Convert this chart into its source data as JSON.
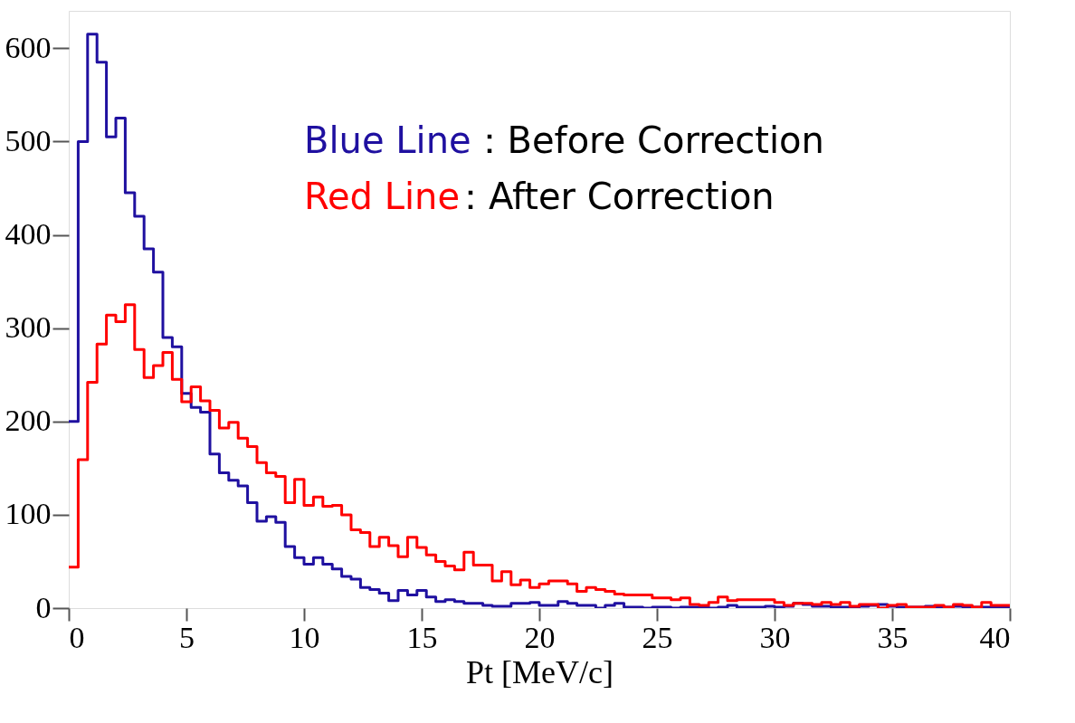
{
  "chart_data": {
    "type": "histogram",
    "xlabel": "Pt [MeV/c]",
    "bins": [
      0,
      0.4,
      0.8,
      1.2,
      1.6,
      2,
      2.4,
      2.8,
      3.2,
      3.6,
      4,
      4.4,
      4.8,
      5.2,
      5.6,
      6,
      6.4,
      6.8,
      7.2,
      7.6,
      8,
      8.4,
      8.8,
      9.2,
      9.6,
      10,
      10.4,
      10.8,
      11.2,
      11.6,
      12,
      12.4,
      12.8,
      13.2,
      13.6,
      14,
      14.4,
      14.8,
      15.2,
      15.6,
      16,
      16.4,
      16.8,
      17.2,
      17.6,
      18,
      18.4,
      18.8,
      19.2,
      19.6,
      20,
      20.4,
      20.8,
      21.2,
      21.6,
      22,
      22.4,
      22.8,
      23.2,
      23.6,
      24,
      24.4,
      24.8,
      25.2,
      25.6,
      26,
      26.4,
      26.8,
      27.2,
      27.6,
      28,
      28.4,
      28.8,
      29.2,
      29.6,
      30,
      30.4,
      30.8,
      31.2,
      31.6,
      32,
      32.4,
      32.8,
      33.2,
      33.6,
      34,
      34.4,
      34.8,
      35.2,
      35.6,
      36,
      36.4,
      36.8,
      37.2,
      37.6,
      38,
      38.4,
      38.8,
      39.2,
      39.6,
      40
    ],
    "series": [
      {
        "name": "Blue Line：Before Correction",
        "color": "#1f10a0",
        "values": [
          200,
          500,
          615,
          585,
          505,
          525,
          445,
          420,
          385,
          360,
          290,
          280,
          230,
          215,
          210,
          165,
          145,
          137,
          131,
          113,
          93,
          98,
          92,
          66,
          54,
          47,
          54,
          47,
          42,
          34,
          31,
          22,
          20,
          16,
          8,
          19,
          14,
          19,
          12,
          7,
          9,
          7,
          5,
          5,
          3,
          2,
          2,
          5,
          5,
          6,
          3,
          3,
          7,
          5,
          3,
          3,
          0,
          3,
          5,
          1,
          1,
          0,
          1,
          1,
          0,
          1,
          1,
          1,
          0,
          1,
          3,
          1,
          1,
          1,
          2,
          1,
          2,
          5,
          4,
          2,
          2,
          1,
          1,
          1,
          2,
          3,
          4,
          2,
          1,
          1,
          1,
          2,
          1,
          1,
          2,
          1,
          1,
          1,
          1,
          1
        ]
      },
      {
        "name": "Red Line：After Correction",
        "color": "#ff0000",
        "values": [
          44,
          159,
          242,
          283,
          314,
          307,
          325,
          277,
          247,
          260,
          274,
          245,
          221,
          237,
          222,
          212,
          193,
          199,
          182,
          173,
          156,
          145,
          141,
          113,
          138,
          110,
          119,
          109,
          110,
          100,
          84,
          81,
          66,
          76,
          67,
          55,
          76,
          65,
          57,
          50,
          45,
          41,
          60,
          46,
          46,
          29,
          39,
          25,
          30,
          22,
          26,
          29,
          29,
          26,
          18,
          22,
          20,
          18,
          15,
          14,
          14,
          14,
          11,
          11,
          9,
          11,
          4,
          3,
          6,
          12,
          8,
          9,
          9,
          9,
          9,
          6,
          3,
          5,
          5,
          4,
          6,
          4,
          6,
          2,
          4,
          4,
          0,
          3,
          4,
          1,
          1,
          1,
          3,
          1,
          4,
          3,
          1,
          6,
          3,
          3
        ]
      }
    ],
    "xlim": [
      0,
      40
    ],
    "xticks": [
      0,
      5,
      10,
      15,
      20,
      25,
      30,
      35,
      40
    ],
    "ylim": [
      0,
      640
    ],
    "yticks": [
      0,
      100,
      200,
      300,
      400,
      500,
      600
    ],
    "grid": false,
    "legend": "top right"
  }
}
